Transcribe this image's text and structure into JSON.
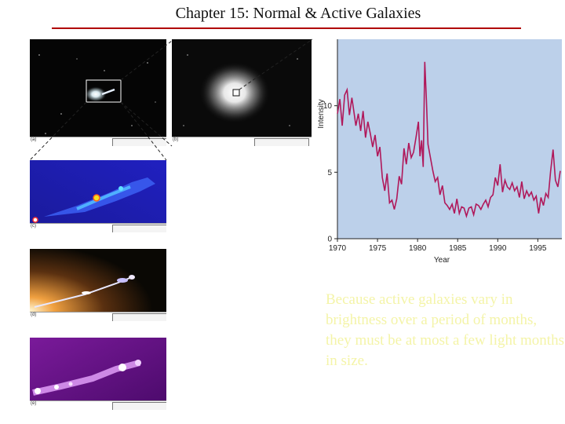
{
  "header": {
    "title": "Chapter 15: Normal & Active Galaxies"
  },
  "figure": {
    "panel_labels": [
      "(a)",
      "(b)",
      "(c)",
      "(d)",
      "(e)"
    ]
  },
  "caption": "Because active galaxies vary in brightness over a period of months, they must be at most a few light months in size.",
  "colors": {
    "rule": "#b00000",
    "plot_bg": "#bcd0ea",
    "series": "#b0185a",
    "caption": "#f4f4a8"
  },
  "chart_data": {
    "type": "line",
    "xlabel": "Year",
    "ylabel": "Intensity",
    "xlim": [
      1970,
      1998
    ],
    "ylim": [
      0,
      15
    ],
    "xticks": [
      1970,
      1975,
      1980,
      1985,
      1990,
      1995
    ],
    "yticks": [
      0,
      5,
      10
    ],
    "grid": false,
    "series": [
      {
        "x": [
          1970.0,
          1970.3,
          1970.6,
          1970.9,
          1971.2,
          1971.5,
          1971.8,
          1972.0,
          1972.3,
          1972.6,
          1972.9,
          1973.2,
          1973.5,
          1973.8,
          1974.1,
          1974.4,
          1974.7,
          1975.0,
          1975.3,
          1975.6,
          1975.9,
          1976.2,
          1976.5,
          1976.8,
          1977.1,
          1977.4,
          1977.7,
          1978.0,
          1978.3,
          1978.6,
          1978.9,
          1979.2,
          1979.5,
          1979.8,
          1980.1,
          1980.3,
          1980.5,
          1980.7,
          1980.9,
          1981.1,
          1981.3,
          1981.6,
          1981.9,
          1982.2,
          1982.5,
          1982.8,
          1983.1,
          1983.4,
          1983.7,
          1984.0,
          1984.3,
          1984.6,
          1984.9,
          1985.2,
          1985.5,
          1985.8,
          1986.1,
          1986.4,
          1986.7,
          1987.0,
          1987.3,
          1987.6,
          1987.9,
          1988.2,
          1988.5,
          1988.8,
          1989.1,
          1989.4,
          1989.7,
          1990.0,
          1990.3,
          1990.6,
          1990.9,
          1991.2,
          1991.5,
          1991.8,
          1992.1,
          1992.4,
          1992.7,
          1993.0,
          1993.3,
          1993.6,
          1993.9,
          1994.2,
          1994.5,
          1994.8,
          1995.1,
          1995.4,
          1995.7,
          1996.0,
          1996.3,
          1996.6,
          1996.9,
          1997.2,
          1997.5,
          1997.8
        ],
        "values": [
          9.4,
          10.5,
          8.5,
          10.8,
          11.2,
          9.3,
          10.6,
          9.8,
          8.5,
          9.4,
          8.1,
          9.6,
          7.6,
          8.8,
          7.9,
          6.9,
          7.8,
          6.2,
          6.9,
          4.6,
          3.6,
          4.9,
          2.7,
          2.9,
          2.2,
          3.0,
          4.7,
          4.1,
          6.8,
          5.6,
          7.2,
          6.1,
          6.5,
          7.6,
          8.8,
          6.2,
          7.4,
          5.4,
          13.3,
          10.4,
          7.1,
          6.1,
          5.1,
          4.3,
          4.6,
          3.3,
          4.0,
          2.7,
          2.5,
          2.2,
          2.6,
          1.9,
          3.0,
          1.9,
          2.4,
          2.3,
          1.7,
          2.3,
          2.4,
          1.8,
          2.6,
          2.5,
          2.2,
          2.6,
          2.9,
          2.4,
          3.1,
          3.3,
          4.6,
          4.0,
          5.6,
          3.5,
          4.4,
          3.9,
          3.7,
          4.2,
          3.6,
          3.9,
          3.1,
          4.3,
          3.0,
          3.6,
          3.2,
          3.5,
          2.9,
          3.2,
          1.9,
          3.1,
          2.5,
          3.4,
          3.1,
          5.1,
          6.7,
          4.4,
          3.9,
          5.1
        ]
      }
    ]
  }
}
